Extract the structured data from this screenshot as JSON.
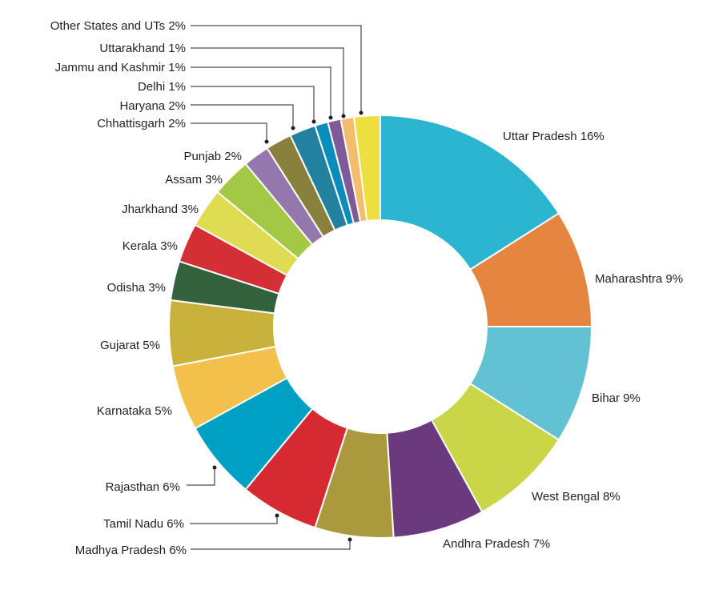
{
  "chart_data": {
    "type": "pie",
    "style": "donut",
    "title": "",
    "slices": [
      {
        "label": "Uttar Pradesh 16%",
        "name": "Uttar Pradesh",
        "value": 16,
        "color": "#2cb5d1"
      },
      {
        "label": "Maharashtra 9%",
        "name": "Maharashtra",
        "value": 9,
        "color": "#e58540"
      },
      {
        "label": "Bihar 9%",
        "name": "Bihar",
        "value": 9,
        "color": "#62c2d3"
      },
      {
        "label": "West Bengal 8%",
        "name": "West Bengal",
        "value": 8,
        "color": "#cad648"
      },
      {
        "label": "Andhra Pradesh 7%",
        "name": "Andhra Pradesh",
        "value": 7,
        "color": "#6a397e"
      },
      {
        "label": "Madhya Pradesh 6%",
        "name": "Madhya Pradesh",
        "value": 6,
        "color": "#ab993d"
      },
      {
        "label": "Tamil Nadu 6%",
        "name": "Tamil Nadu",
        "value": 6,
        "color": "#d62a33"
      },
      {
        "label": "Rajasthan 6%",
        "name": "Rajasthan",
        "value": 6,
        "color": "#00a0c4"
      },
      {
        "label": "Karnataka 5%",
        "name": "Karnataka",
        "value": 5,
        "color": "#f2c04b"
      },
      {
        "label": "Gujarat 5%",
        "name": "Gujarat",
        "value": 5,
        "color": "#c9b23c"
      },
      {
        "label": "Odisha 3%",
        "name": "Odisha",
        "value": 3,
        "color": "#32613b"
      },
      {
        "label": "Kerala 3%",
        "name": "Kerala",
        "value": 3,
        "color": "#d32f35"
      },
      {
        "label": "Jharkhand 3%",
        "name": "Jharkhand",
        "value": 3,
        "color": "#dfdc53"
      },
      {
        "label": "Assam 3%",
        "name": "Assam",
        "value": 3,
        "color": "#a3c845"
      },
      {
        "label": "Punjab 2%",
        "name": "Punjab",
        "value": 2,
        "color": "#9477ad"
      },
      {
        "label": "Chhattisgarh 2%",
        "name": "Chhattisgarh",
        "value": 2,
        "color": "#8a803e"
      },
      {
        "label": "Haryana 2%",
        "name": "Haryana",
        "value": 2,
        "color": "#21819e"
      },
      {
        "label": "Delhi 1%",
        "name": "Delhi",
        "value": 1,
        "color": "#0a8dbd"
      },
      {
        "label": "Jammu and Kashmir 1%",
        "name": "Jammu and Kashmir",
        "value": 1,
        "color": "#7f5a98"
      },
      {
        "label": "Uttarakhand 1%",
        "name": "Uttarakhand",
        "value": 1,
        "color": "#f3bd6d"
      },
      {
        "label": "Other States and UTs 2%",
        "name": "Other States and UTs",
        "value": 2,
        "color": "#eddf3f"
      }
    ]
  }
}
